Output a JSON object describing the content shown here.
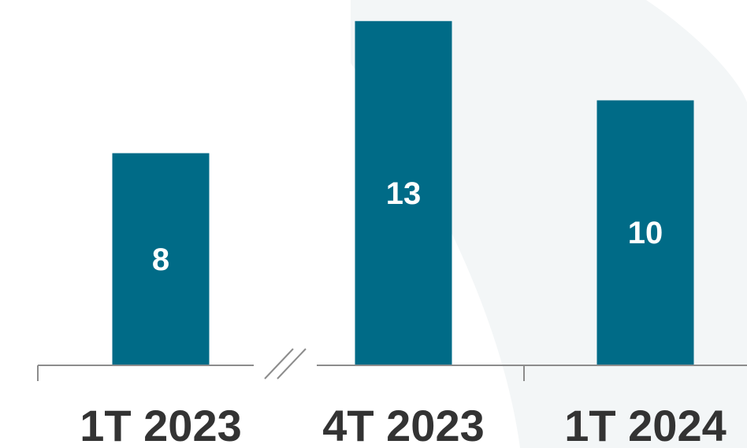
{
  "colors": {
    "bar": "#006b87",
    "value_label": "#ffffff",
    "category_label": "#333333",
    "axis": "#8c8c8c",
    "background_shape": "#f3f6f7"
  },
  "chart_data": {
    "type": "bar",
    "categories": [
      "1T 2023",
      "4T 2023",
      "1T 2024"
    ],
    "values": [
      8,
      13,
      10
    ],
    "data_labels": [
      "8",
      "13",
      "10"
    ],
    "title": "",
    "xlabel": "",
    "ylabel": "",
    "ylim": [
      0,
      13.5
    ],
    "grid": false,
    "legend": "none",
    "axis_break_between": [
      "1T 2023",
      "4T 2023"
    ]
  }
}
